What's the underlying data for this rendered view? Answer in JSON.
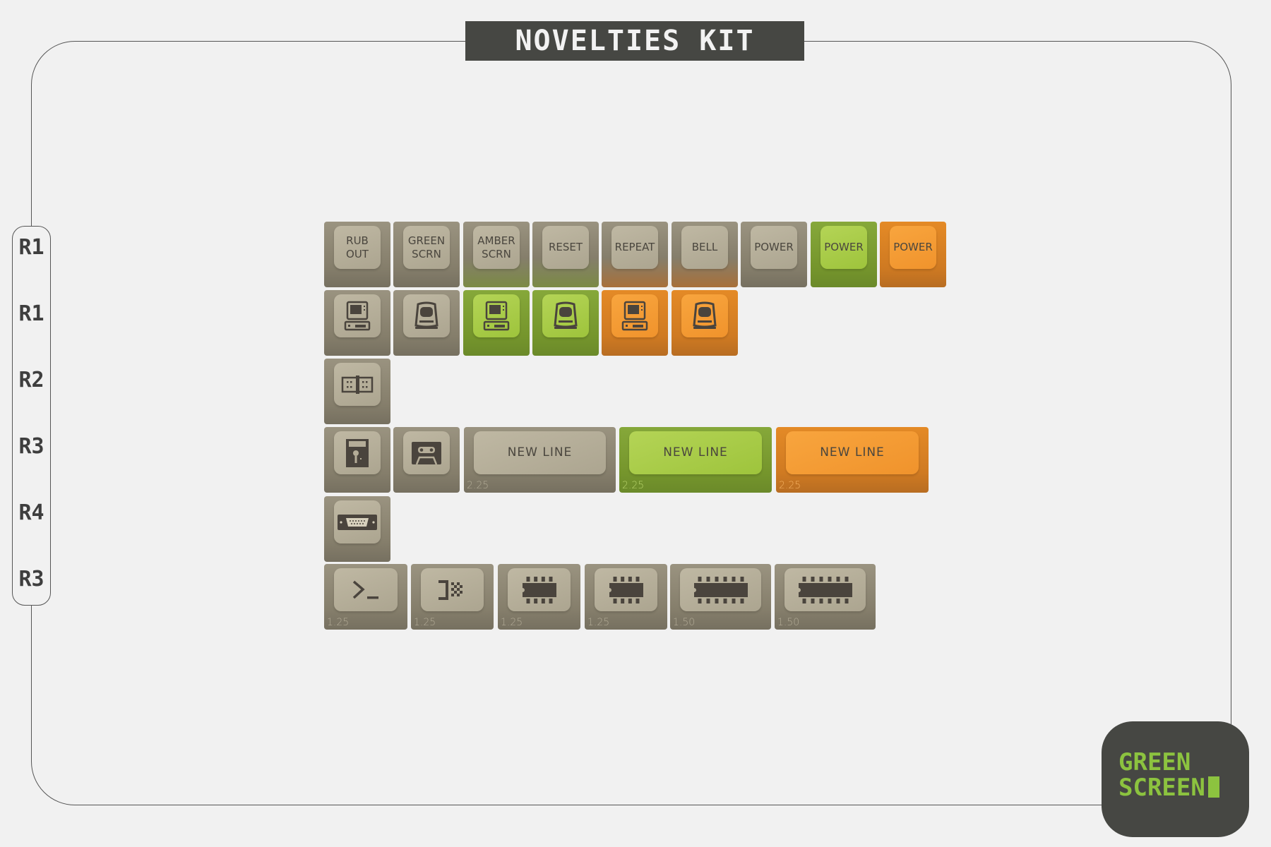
{
  "title": "NOVELTIES KIT",
  "row_labels": [
    "R1",
    "R1",
    "R2",
    "R3",
    "R4",
    "R3"
  ],
  "logo": {
    "line1": "GREEN",
    "line2": "SCREEN"
  },
  "colors": {
    "beige": "#b5ad98",
    "green": "#a9cb4a",
    "orange": "#f59a35",
    "dark": "#464743",
    "logo_green": "#8cc33f"
  },
  "keys": {
    "row1": [
      {
        "label": "RUB\nOUT",
        "color": "beige"
      },
      {
        "label": "GREEN\nSCRN",
        "color": "beige"
      },
      {
        "label": "AMBER\nSCRN",
        "color": "beige"
      },
      {
        "label": "RESET",
        "color": "beige"
      },
      {
        "label": "REPEAT",
        "color": "beige"
      },
      {
        "label": "BELL",
        "color": "beige"
      },
      {
        "label": "POWER",
        "color": "beige"
      },
      {
        "label": "POWER",
        "color": "green"
      },
      {
        "label": "POWER",
        "color": "orange"
      }
    ],
    "row2": [
      {
        "icon": "desktop-computer-icon",
        "color": "beige"
      },
      {
        "icon": "terminal-monitor-icon",
        "color": "beige"
      },
      {
        "icon": "desktop-computer-icon",
        "color": "green"
      },
      {
        "icon": "terminal-monitor-icon",
        "color": "green"
      },
      {
        "icon": "desktop-computer-icon",
        "color": "orange"
      },
      {
        "icon": "terminal-monitor-icon",
        "color": "orange"
      }
    ],
    "row3": [
      {
        "icon": "connector-icon",
        "color": "beige"
      }
    ],
    "row4": [
      {
        "icon": "floppy-disk-icon",
        "color": "beige"
      },
      {
        "icon": "cassette-icon",
        "color": "beige"
      },
      {
        "label": "NEW LINE",
        "size": "2.25",
        "color": "beige"
      },
      {
        "label": "NEW LINE",
        "size": "2.25",
        "color": "green"
      },
      {
        "label": "NEW LINE",
        "size": "2.25",
        "color": "orange"
      }
    ],
    "row5": [
      {
        "icon": "serial-port-icon",
        "color": "beige"
      }
    ],
    "row6": [
      {
        "icon": "command-prompt-icon",
        "size": "1.25",
        "color": "beige"
      },
      {
        "icon": "bracket-checker-icon",
        "size": "1.25",
        "color": "beige"
      },
      {
        "icon": "chip-icon",
        "size": "1.25",
        "color": "beige"
      },
      {
        "icon": "chip-icon",
        "size": "1.25",
        "color": "beige"
      },
      {
        "icon": "chip-wide-icon",
        "size": "1.50",
        "color": "beige"
      },
      {
        "icon": "chip-wide-icon",
        "size": "1.50",
        "color": "beige"
      }
    ]
  }
}
